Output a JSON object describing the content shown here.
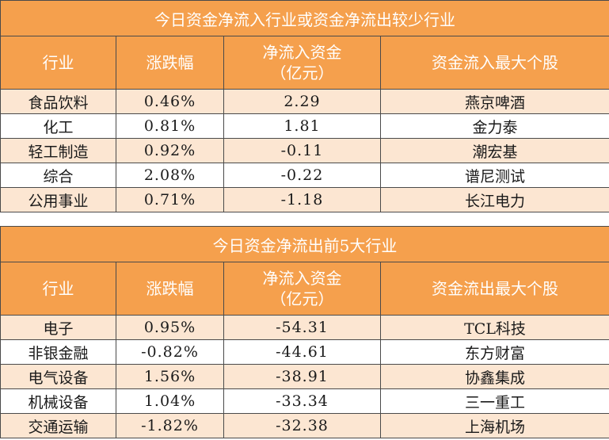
{
  "inflow_table": {
    "title": "今日资金净流入行业或资金净流出较少行业",
    "headers": [
      "行业",
      "涨跌幅",
      "净流入资金\n（亿元）",
      "资金流入最大个股"
    ],
    "rows": [
      {
        "industry": "食品饮料",
        "change": "0.46%",
        "net_inflow": "2.29",
        "top_stock": "燕京啤酒"
      },
      {
        "industry": "化工",
        "change": "0.81%",
        "net_inflow": "1.81",
        "top_stock": "金力泰"
      },
      {
        "industry": "轻工制造",
        "change": "0.92%",
        "net_inflow": "-0.11",
        "top_stock": "潮宏基"
      },
      {
        "industry": "综合",
        "change": "2.08%",
        "net_inflow": "-0.22",
        "top_stock": "谱尼测试"
      },
      {
        "industry": "公用事业",
        "change": "0.71%",
        "net_inflow": "-1.18",
        "top_stock": "长江电力"
      }
    ]
  },
  "outflow_table": {
    "title": "今日资金净流出前5大行业",
    "headers": [
      "行业",
      "涨跌幅",
      "净流入资金\n（亿元）",
      "资金流出最大个股"
    ],
    "rows": [
      {
        "industry": "电子",
        "change": "0.95%",
        "net_inflow": "-54.31",
        "top_stock": "TCL科技"
      },
      {
        "industry": "非银金融",
        "change": "-0.82%",
        "net_inflow": "-44.61",
        "top_stock": "东方财富"
      },
      {
        "industry": "电气设备",
        "change": "1.56%",
        "net_inflow": "-38.91",
        "top_stock": "协鑫集成"
      },
      {
        "industry": "机械设备",
        "change": "1.04%",
        "net_inflow": "-33.34",
        "top_stock": "三一重工"
      },
      {
        "industry": "交通运输",
        "change": "-1.82%",
        "net_inflow": "-32.38",
        "top_stock": "上海机场"
      }
    ]
  }
}
